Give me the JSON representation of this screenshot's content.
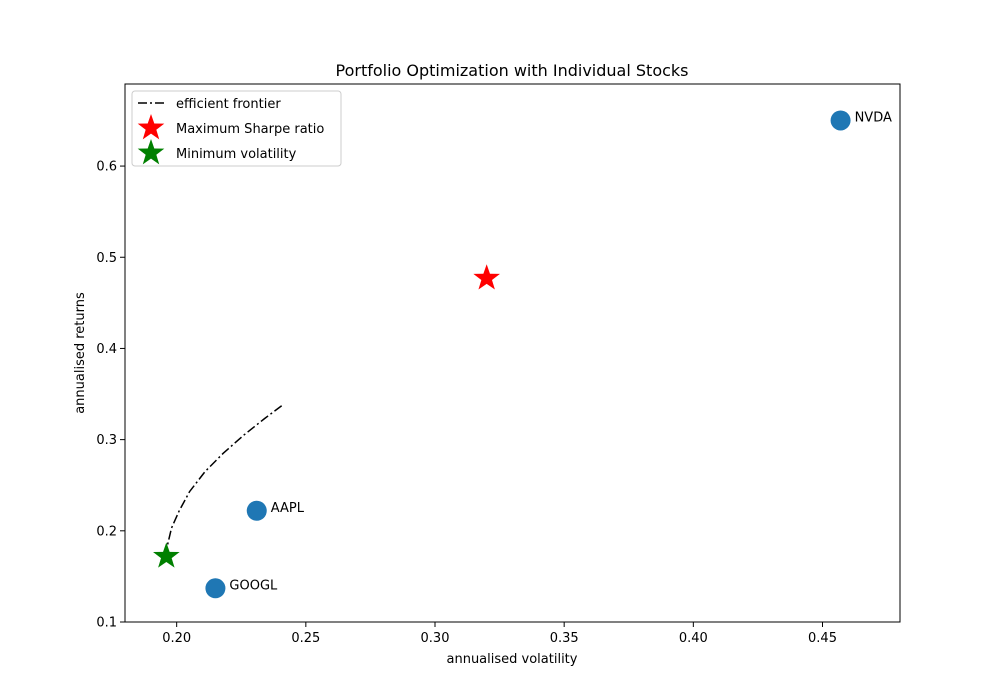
{
  "chart_data": {
    "type": "scatter",
    "title": "Portfolio Optimization with Individual Stocks",
    "xlabel": "annualised volatility",
    "ylabel": "annualised returns",
    "xlim": [
      0.18,
      0.48
    ],
    "ylim": [
      0.1,
      0.69
    ],
    "xticks": [
      0.2,
      0.25,
      0.3,
      0.35,
      0.4,
      0.45
    ],
    "xtick_labels": [
      "0.20",
      "0.25",
      "0.30",
      "0.35",
      "0.40",
      "0.45"
    ],
    "yticks": [
      0.1,
      0.2,
      0.3,
      0.4,
      0.5,
      0.6
    ],
    "ytick_labels": [
      "0.1",
      "0.2",
      "0.3",
      "0.4",
      "0.5",
      "0.6"
    ],
    "grid": false,
    "legend_position": "top-left",
    "stocks": [
      {
        "label": "NVDA",
        "x": 0.457,
        "y": 0.65
      },
      {
        "label": "AAPL",
        "x": 0.231,
        "y": 0.222
      },
      {
        "label": "GOOGL",
        "x": 0.215,
        "y": 0.137
      }
    ],
    "stock_color": "#1f77b4",
    "efficient_frontier": {
      "name": "efficient frontier",
      "color": "#000000",
      "linestyle": "dash-dot",
      "x": [
        0.196,
        0.1965,
        0.198,
        0.201,
        0.205,
        0.211,
        0.218,
        0.226,
        0.234,
        0.2415
      ],
      "y": [
        0.172,
        0.185,
        0.203,
        0.222,
        0.243,
        0.265,
        0.285,
        0.305,
        0.323,
        0.339
      ]
    },
    "max_sharpe": {
      "name": "Maximum Sharpe ratio",
      "x": 0.32,
      "y": 0.477,
      "color": "#ff0000",
      "marker": "star"
    },
    "min_volatility": {
      "name": "Minimum volatility",
      "x": 0.196,
      "y": 0.172,
      "color": "#008000",
      "marker": "star"
    }
  }
}
